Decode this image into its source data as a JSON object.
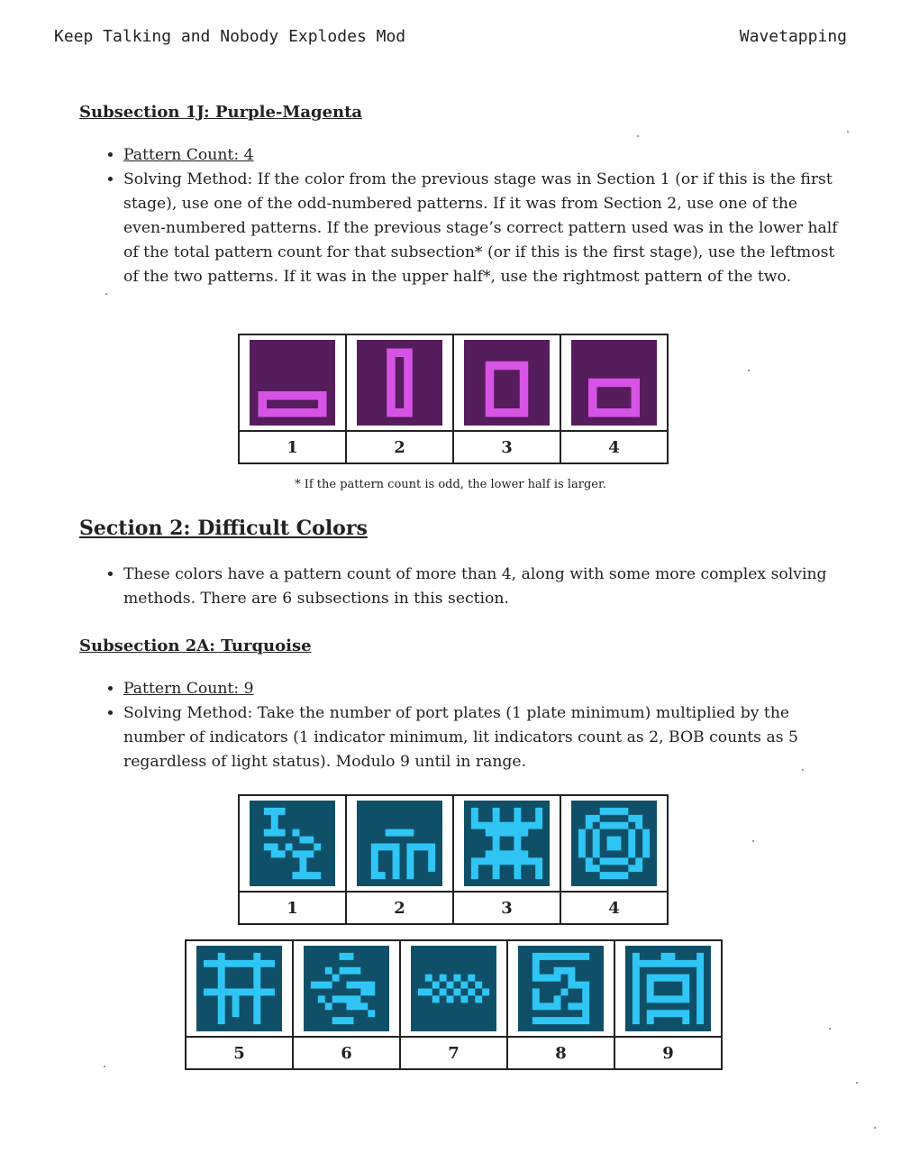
{
  "header": {
    "left": "Keep Talking and Nobody Explodes Mod",
    "right": "Wavetapping"
  },
  "sub1j": {
    "title": "Subsection 1J: Purple-Magenta",
    "pattern_count": "Pattern Count: 4",
    "method": "Solving Method: If the color from the previous stage was in Section 1 (or if this is the first stage), use one of the odd-numbered patterns. If it was from Section 2, use one of the even-numbered patterns. If the previous stage’s correct pattern used was in the lower half of the total pattern count for that subsection* (or if this is the first stage), use the leftmost of the two patterns. If it was in the upper half*, use the rightmost pattern of the two.",
    "labels": [
      "1",
      "2",
      "3",
      "4"
    ],
    "colors": {
      "bg": "#561d5c",
      "fg": "#d753e6"
    }
  },
  "footnote": "* If the pattern count is odd, the lower half is larger.",
  "section2": {
    "title": "Section 2: Difficult Colors",
    "desc": "These colors have a pattern count of more than 4, along with some more complex solving methods. There are 6 subsections in this section."
  },
  "sub2a": {
    "title": "Subsection 2A: Turquoise",
    "pattern_count": "Pattern Count: 9",
    "method": "Solving Method: Take the number of port plates (1 plate minimum) multiplied by the number of indicators (1 indicator minimum, lit indicators count as 2, BOB counts as 5 regardless of light status). Modulo 9 until in range.",
    "labels_row1": [
      "1",
      "2",
      "3",
      "4"
    ],
    "labels_row2": [
      "5",
      "6",
      "7",
      "8",
      "9"
    ],
    "colors": {
      "bg": "#0f5068",
      "fg": "#2fc6f5"
    }
  }
}
